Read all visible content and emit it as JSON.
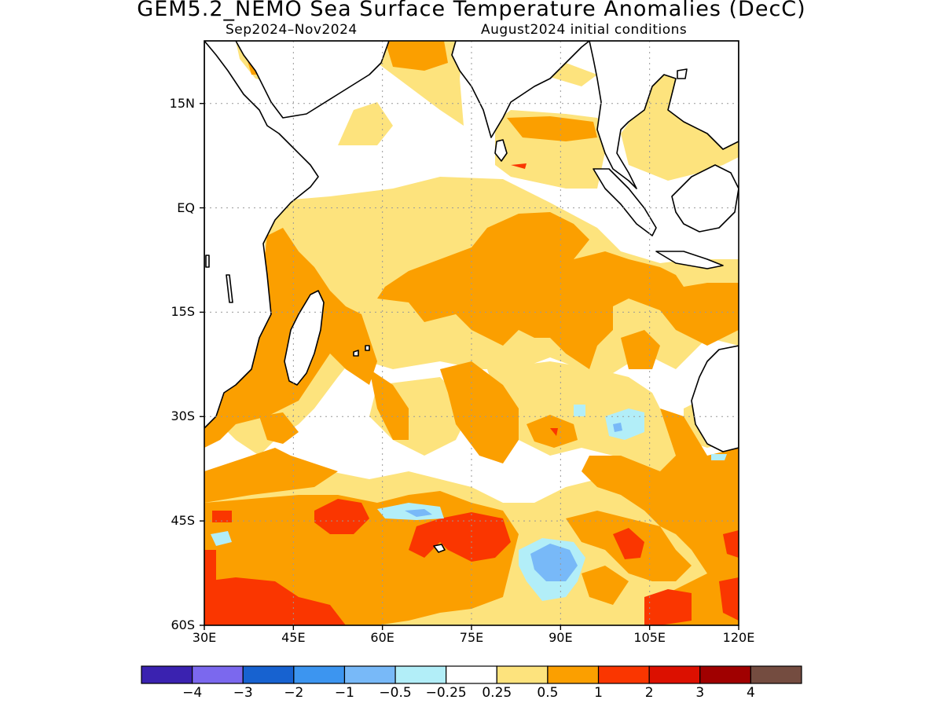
{
  "title": "GEM5.2_NEMO Sea Surface Temperature Anomalies (DecC)",
  "subtitle_left": "Sep2024–Nov2024",
  "subtitle_right": "August2024 initial conditions",
  "map": {
    "lon_range": [
      30,
      120
    ],
    "lat_range": [
      -60,
      24
    ],
    "lat_ticks": [
      {
        "value": 15,
        "label": "15N"
      },
      {
        "value": 0,
        "label": "EQ"
      },
      {
        "value": -15,
        "label": "15S"
      },
      {
        "value": -30,
        "label": "30S"
      },
      {
        "value": -45,
        "label": "45S"
      },
      {
        "value": -60,
        "label": "60S"
      }
    ],
    "lon_ticks": [
      {
        "value": 30,
        "label": "30E"
      },
      {
        "value": 45,
        "label": "45E"
      },
      {
        "value": 60,
        "label": "60E"
      },
      {
        "value": 75,
        "label": "75E"
      },
      {
        "value": 90,
        "label": "90E"
      },
      {
        "value": 105,
        "label": "105E"
      },
      {
        "value": 120,
        "label": "120E"
      }
    ],
    "grid": true,
    "colors": {
      "land": "#ffffff",
      "coast": "#000000",
      "ocean_base": "#ffffff"
    }
  },
  "colorbar": {
    "colors": [
      "#3a22b0",
      "#7b68ee",
      "#1762d0",
      "#3c95f0",
      "#78b9f8",
      "#b2eef8",
      "#ffffff",
      "#fde37d",
      "#fb9f00",
      "#fa3600",
      "#dc1000",
      "#a00000",
      "#744c40"
    ],
    "labels": [
      "−4",
      "−3",
      "−2",
      "−1",
      "−0.5",
      "−0.25",
      "0.25",
      "0.5",
      "1",
      "2",
      "3",
      "4"
    ]
  }
}
